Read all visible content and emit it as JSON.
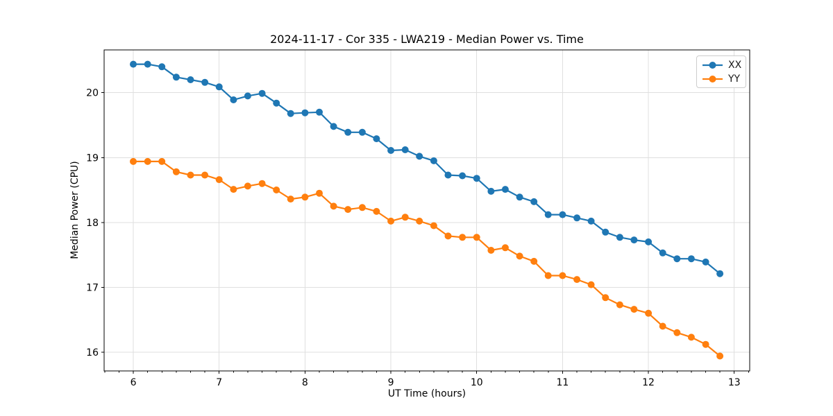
{
  "chart_data": {
    "type": "line",
    "title": "2024-11-17 - Cor 335 - LWA219 - Median Power vs. Time",
    "xlabel": "UT Time (hours)",
    "ylabel": "Median Power (CPU)",
    "xlim": [
      5.66,
      13.18
    ],
    "ylim": [
      15.71,
      20.66
    ],
    "xticks": [
      6,
      7,
      8,
      9,
      10,
      11,
      12,
      13
    ],
    "yticks": [
      16,
      17,
      18,
      19,
      20
    ],
    "minor_tick_step": 0.1666667,
    "grid": true,
    "legend_position": "upper right",
    "marker": "circle",
    "x": [
      6.0,
      6.167,
      6.333,
      6.5,
      6.667,
      6.833,
      7.0,
      7.167,
      7.333,
      7.5,
      7.667,
      7.833,
      8.0,
      8.167,
      8.333,
      8.5,
      8.667,
      8.833,
      9.0,
      9.167,
      9.333,
      9.5,
      9.667,
      9.833,
      10.0,
      10.167,
      10.333,
      10.5,
      10.667,
      10.833,
      11.0,
      11.167,
      11.333,
      11.5,
      11.667,
      11.833,
      12.0,
      12.167,
      12.333,
      12.5,
      12.667,
      12.833
    ],
    "series": [
      {
        "name": "XX",
        "color": "#1f77b4",
        "values": [
          20.44,
          20.44,
          20.4,
          20.24,
          20.2,
          20.16,
          20.09,
          19.89,
          19.95,
          19.99,
          19.84,
          19.68,
          19.69,
          19.7,
          19.48,
          19.39,
          19.39,
          19.29,
          19.11,
          19.12,
          19.02,
          18.95,
          18.73,
          18.72,
          18.68,
          18.48,
          18.51,
          18.39,
          18.32,
          18.12,
          18.12,
          18.07,
          18.02,
          17.85,
          17.77,
          17.73,
          17.7,
          17.53,
          17.44,
          17.44,
          17.39,
          17.21
        ]
      },
      {
        "name": "YY",
        "color": "#ff7f0e",
        "values": [
          18.94,
          18.94,
          18.94,
          18.78,
          18.73,
          18.73,
          18.66,
          18.51,
          18.56,
          18.6,
          18.5,
          18.36,
          18.39,
          18.45,
          18.25,
          18.2,
          18.23,
          18.17,
          18.02,
          18.08,
          18.02,
          17.95,
          17.79,
          17.77,
          17.77,
          17.57,
          17.61,
          17.48,
          17.4,
          17.18,
          17.18,
          17.12,
          17.04,
          16.84,
          16.73,
          16.66,
          16.6,
          16.4,
          16.3,
          16.23,
          16.12,
          15.94
        ]
      }
    ]
  },
  "colors": {
    "background": "#ffffff",
    "grid": "#dfdfdf",
    "axis": "#000000",
    "tick_text": "#000000",
    "legend_border": "#cccccc"
  }
}
